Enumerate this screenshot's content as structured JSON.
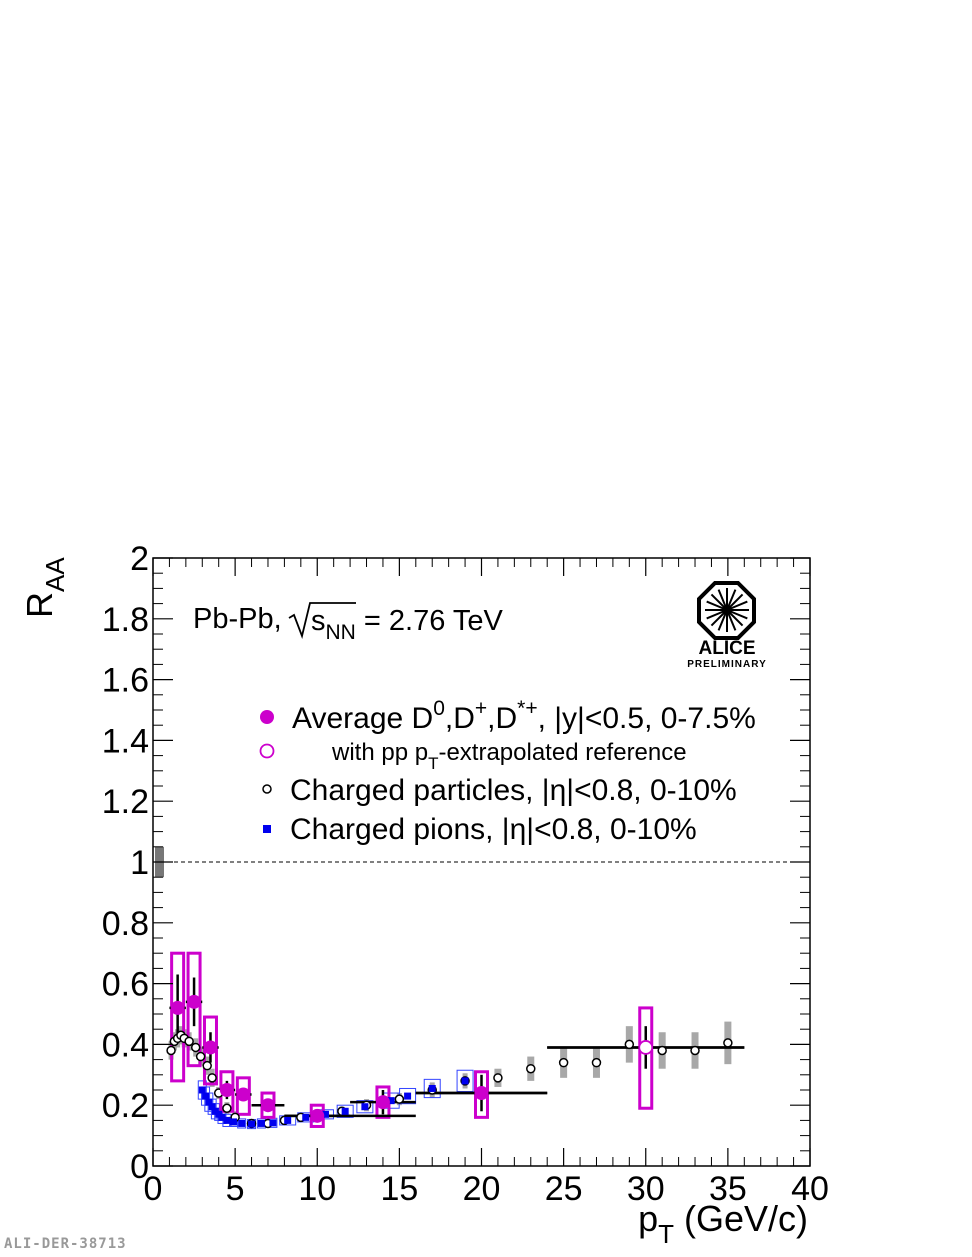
{
  "chart_data": {
    "type": "scatter",
    "xlabel_main": "p",
    "xlabel_sub": "T",
    "xlabel_rest": " (GeV/c)",
    "ylabel_main": "R",
    "ylabel_sub": "AA",
    "xlim": [
      0,
      40
    ],
    "ylim": [
      0,
      2
    ],
    "x_ticks": [
      0,
      5,
      10,
      15,
      20,
      25,
      30,
      35,
      40
    ],
    "y_ticks": [
      0,
      0.2,
      0.4,
      0.6,
      0.8,
      1,
      1.2,
      1.4,
      1.6,
      1.8,
      2
    ],
    "y_tick_labels": [
      "0",
      "0.2",
      "0.4",
      "0.6",
      "0.8",
      "1",
      "1.2",
      "1.4",
      "1.6",
      "1.8",
      "2"
    ],
    "reference_line": 1,
    "system_text": {
      "prefix": "Pb-Pb,",
      "s": "s",
      "nn": "NN",
      "value": " = 2.76 TeV"
    },
    "legend": {
      "d_meson": {
        "pre": "Average D",
        "sup0": "0",
        "mid1": ",D",
        "sup1": "+",
        "mid2": ",D",
        "sup2": "*+",
        "post": ", |y|<0.5, 0-7.5%"
      },
      "extrap": {
        "pre": "with pp p",
        "sub": "T",
        "post": "-extrapolated reference"
      },
      "charged": "Charged particles, |η|<0.8, 0-10%",
      "pions": "Charged pions, |η|<0.8, 0-10%"
    },
    "logo": {
      "name": "ALICE",
      "tag": "PRELIMINARY"
    },
    "colors": {
      "d_meson": "#cc00cc",
      "pions": "#0000ee",
      "pion_box": "#3344ff",
      "sys_gray": "#999999",
      "norm_box": "#777777"
    },
    "series": [
      {
        "name": "Average D0,D+,D*+, |y|<0.5, 0-7.5%",
        "points": [
          {
            "x": 1.5,
            "y": 0.52,
            "xerr": 0.5,
            "yerr": 0.11,
            "syslo": 0.28,
            "syshi": 0.7
          },
          {
            "x": 2.5,
            "y": 0.54,
            "xerr": 0.5,
            "yerr": 0.08,
            "syslo": 0.33,
            "syshi": 0.7
          },
          {
            "x": 3.5,
            "y": 0.39,
            "xerr": 0.5,
            "yerr": 0.05,
            "syslo": 0.27,
            "syshi": 0.49
          },
          {
            "x": 4.5,
            "y": 0.25,
            "xerr": 0.5,
            "yerr": 0.03,
            "syslo": 0.18,
            "syshi": 0.31
          },
          {
            "x": 5.5,
            "y": 0.235,
            "xerr": 0.5,
            "yerr": 0.02,
            "syslo": 0.17,
            "syshi": 0.29
          },
          {
            "x": 7.0,
            "y": 0.2,
            "xerr": 1.0,
            "yerr": 0.02,
            "syslo": 0.16,
            "syshi": 0.24
          },
          {
            "x": 10.0,
            "y": 0.165,
            "xerr": 2.0,
            "yerr": 0.02,
            "syslo": 0.13,
            "syshi": 0.2
          },
          {
            "x": 14.0,
            "y": 0.21,
            "xerr": 2.0,
            "yerr": 0.04,
            "syslo": 0.16,
            "syshi": 0.26
          },
          {
            "x": 20.0,
            "y": 0.24,
            "xerr": 4.0,
            "yerr": 0.06,
            "syslo": 0.16,
            "syshi": 0.31
          }
        ]
      },
      {
        "name": "with pp pT-extrapolated reference",
        "points": [
          {
            "x": 30.0,
            "y": 0.39,
            "xerr": 6.0,
            "yerr": 0.07,
            "syslo": 0.19,
            "syshi": 0.52
          }
        ]
      },
      {
        "name": "Charged particles, |η|<0.8, 0-10%",
        "points": [
          {
            "x": 1.1,
            "y": 0.38,
            "sys": 0.03
          },
          {
            "x": 1.3,
            "y": 0.41,
            "sys": 0.03
          },
          {
            "x": 1.5,
            "y": 0.42,
            "sys": 0.03
          },
          {
            "x": 1.7,
            "y": 0.43,
            "sys": 0.03
          },
          {
            "x": 1.9,
            "y": 0.42,
            "sys": 0.03
          },
          {
            "x": 2.2,
            "y": 0.41,
            "sys": 0.03
          },
          {
            "x": 2.6,
            "y": 0.39,
            "sys": 0.03
          },
          {
            "x": 2.9,
            "y": 0.36,
            "sys": 0.03
          },
          {
            "x": 3.3,
            "y": 0.33,
            "sys": 0.03
          },
          {
            "x": 3.6,
            "y": 0.29,
            "sys": 0.03
          },
          {
            "x": 4.0,
            "y": 0.24,
            "sys": 0.02
          },
          {
            "x": 4.5,
            "y": 0.19,
            "sys": 0.02
          },
          {
            "x": 5.0,
            "y": 0.16,
            "sys": 0.02
          },
          {
            "x": 6.0,
            "y": 0.14,
            "sys": 0.015
          },
          {
            "x": 7.0,
            "y": 0.14,
            "sys": 0.015
          },
          {
            "x": 8.0,
            "y": 0.15,
            "sys": 0.015
          },
          {
            "x": 9.0,
            "y": 0.16,
            "sys": 0.015
          },
          {
            "x": 10.0,
            "y": 0.17,
            "sys": 0.015
          },
          {
            "x": 11.5,
            "y": 0.18,
            "sys": 0.015
          },
          {
            "x": 13.0,
            "y": 0.2,
            "sys": 0.02
          },
          {
            "x": 15.0,
            "y": 0.22,
            "sys": 0.02
          },
          {
            "x": 17.0,
            "y": 0.25,
            "sys": 0.025
          },
          {
            "x": 19.0,
            "y": 0.28,
            "sys": 0.025
          },
          {
            "x": 21.0,
            "y": 0.29,
            "sys": 0.03
          },
          {
            "x": 23.0,
            "y": 0.32,
            "sys": 0.04
          },
          {
            "x": 25.0,
            "y": 0.34,
            "sys": 0.05
          },
          {
            "x": 27.0,
            "y": 0.34,
            "sys": 0.05
          },
          {
            "x": 29.0,
            "y": 0.4,
            "sys": 0.06
          },
          {
            "x": 31.0,
            "y": 0.38,
            "sys": 0.06
          },
          {
            "x": 33.0,
            "y": 0.38,
            "sys": 0.06
          },
          {
            "x": 35.0,
            "y": 0.405,
            "sys": 0.07
          }
        ],
        "binned_lines": [
          {
            "xlo": 8.0,
            "xhi": 16.0,
            "y": 0.165
          },
          {
            "xlo": 16.0,
            "xhi": 24.0,
            "y": 0.24
          },
          {
            "xlo": 24.0,
            "xhi": 36.0,
            "y": 0.39
          }
        ]
      },
      {
        "name": "Charged pions, |η|<0.8, 0-10%",
        "points": [
          {
            "x": 3.0,
            "y": 0.25,
            "sys": 0.03
          },
          {
            "x": 3.2,
            "y": 0.23,
            "sys": 0.03
          },
          {
            "x": 3.4,
            "y": 0.21,
            "sys": 0.03
          },
          {
            "x": 3.6,
            "y": 0.195,
            "sys": 0.025
          },
          {
            "x": 3.8,
            "y": 0.18,
            "sys": 0.025
          },
          {
            "x": 4.0,
            "y": 0.17,
            "sys": 0.02
          },
          {
            "x": 4.2,
            "y": 0.16,
            "sys": 0.02
          },
          {
            "x": 4.5,
            "y": 0.15,
            "sys": 0.02
          },
          {
            "x": 4.9,
            "y": 0.145,
            "sys": 0.015
          },
          {
            "x": 5.4,
            "y": 0.14,
            "sys": 0.015
          },
          {
            "x": 6.0,
            "y": 0.138,
            "sys": 0.015
          },
          {
            "x": 6.6,
            "y": 0.14,
            "sys": 0.015
          },
          {
            "x": 7.3,
            "y": 0.142,
            "sys": 0.015
          },
          {
            "x": 8.2,
            "y": 0.15,
            "sys": 0.015
          },
          {
            "x": 9.3,
            "y": 0.16,
            "sys": 0.015
          },
          {
            "x": 10.5,
            "y": 0.17,
            "sys": 0.015
          },
          {
            "x": 11.7,
            "y": 0.18,
            "sys": 0.02
          },
          {
            "x": 12.9,
            "y": 0.195,
            "sys": 0.02
          },
          {
            "x": 14.5,
            "y": 0.215,
            "sys": 0.025
          },
          {
            "x": 15.5,
            "y": 0.23,
            "sys": 0.025
          },
          {
            "x": 17.0,
            "y": 0.255,
            "sys": 0.03
          },
          {
            "x": 19.0,
            "y": 0.28,
            "sys": 0.035
          }
        ]
      }
    ]
  },
  "figure_id": "ALI-DER-38713"
}
